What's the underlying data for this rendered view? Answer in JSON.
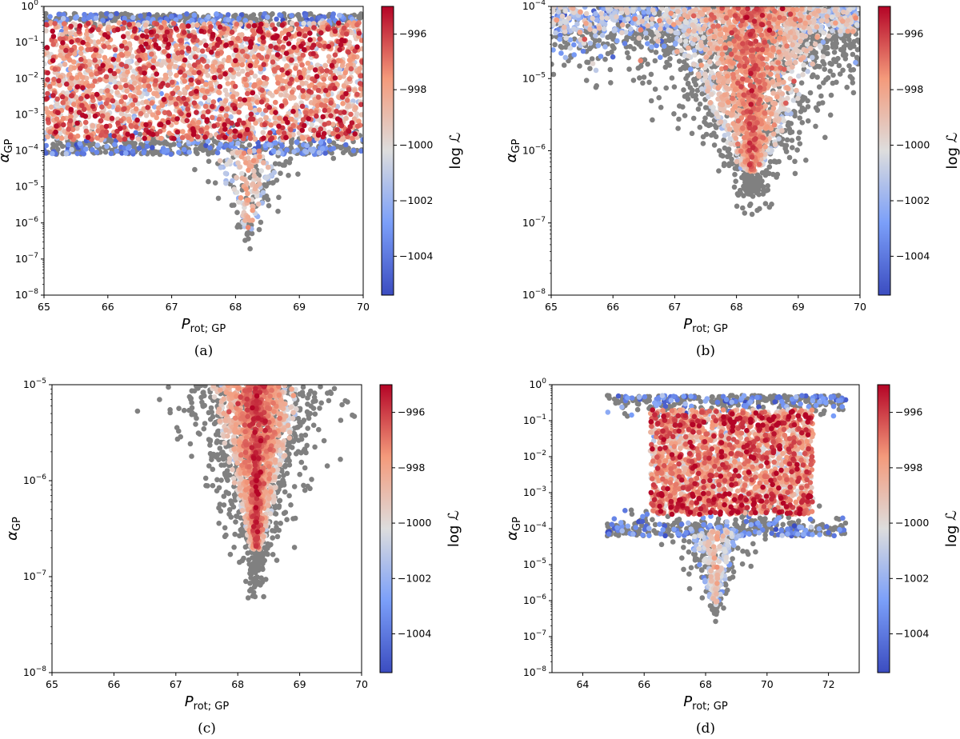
{
  "chart_data": [
    {
      "type": "scatter",
      "panel_label": "(a)",
      "xlabel_main": "P",
      "xlabel_sub": "rot; GP",
      "ylabel_main": "α",
      "ylabel_sub": "GP",
      "xlim": [
        65,
        70
      ],
      "ylim": [
        1e-08,
        1
      ],
      "yscale": "log",
      "x_ticks": [
        65,
        66,
        67,
        68,
        69,
        70
      ],
      "x_tick_labels": [
        "65",
        "66",
        "67",
        "68",
        "69",
        "70"
      ],
      "y_ticks": [
        1e-08,
        1e-07,
        1e-06,
        1e-05,
        0.0001,
        0.001,
        0.01,
        0.1,
        1
      ],
      "y_tick_labels": [
        {
          "base": "10",
          "exp": "−8"
        },
        {
          "base": "10",
          "exp": "−7"
        },
        {
          "base": "10",
          "exp": "−6"
        },
        {
          "base": "10",
          "exp": "−5"
        },
        {
          "base": "10",
          "exp": "−4"
        },
        {
          "base": "10",
          "exp": "−3"
        },
        {
          "base": "10",
          "exp": "−2"
        },
        {
          "base": "10",
          "exp": "−1"
        },
        {
          "base": "10",
          "exp": "0"
        }
      ],
      "colorbar": {
        "label": "log ℒ",
        "range": [
          -1005.4,
          -995.0
        ],
        "ticks": [
          -996,
          -998,
          -1000,
          -1002,
          -1004
        ],
        "tick_labels": [
          "−996",
          "−998",
          "−1000",
          "−1002",
          "−1004"
        ],
        "colormap": "coolwarm"
      },
      "grey_color": "#808080",
      "clusters": [
        {
          "kind": "band",
          "x_range": [
            65,
            70
          ],
          "log_y_range": [
            -3.7,
            -0.45
          ],
          "count": 2600,
          "log_L_center": -998.5,
          "log_L_spread": 1.8
        },
        {
          "kind": "band_edge",
          "x_range": [
            65,
            70
          ],
          "log_y_range": [
            -4.1,
            -0.2
          ],
          "count": 900,
          "log_L": "low"
        },
        {
          "kind": "vertex",
          "x_center": 68.2,
          "log_y_top": -4.0,
          "log_y_bottom": -6.5,
          "half_width": 0.6,
          "count": 150,
          "log_L_center": -1000.5,
          "log_L_spread": 1.5
        }
      ]
    },
    {
      "type": "scatter",
      "panel_label": "(b)",
      "xlabel_main": "P",
      "xlabel_sub": "rot; GP",
      "ylabel_main": "α",
      "ylabel_sub": "GP",
      "xlim": [
        65,
        70
      ],
      "ylim": [
        1e-08,
        0.0001
      ],
      "yscale": "log",
      "x_ticks": [
        65,
        66,
        67,
        68,
        69,
        70
      ],
      "x_tick_labels": [
        "65",
        "66",
        "67",
        "68",
        "69",
        "70"
      ],
      "y_ticks": [
        1e-08,
        1e-07,
        1e-06,
        1e-05,
        0.0001
      ],
      "y_tick_labels": [
        {
          "base": "10",
          "exp": "−8"
        },
        {
          "base": "10",
          "exp": "−7"
        },
        {
          "base": "10",
          "exp": "−6"
        },
        {
          "base": "10",
          "exp": "−5"
        },
        {
          "base": "10",
          "exp": "−4"
        }
      ],
      "colorbar": {
        "label": "log ℒ",
        "range": [
          -1005.4,
          -995.0
        ],
        "ticks": [
          -996,
          -998,
          -1000,
          -1002,
          -1004
        ],
        "tick_labels": [
          "−996",
          "−998",
          "−1000",
          "−1002",
          "−1004"
        ],
        "colormap": "coolwarm"
      },
      "grey_color": "#808080",
      "clusters": [
        {
          "kind": "top_band",
          "x_range": [
            65,
            70
          ],
          "log_y_range": [
            -4.6,
            -4.0
          ],
          "count": 900,
          "log_L_center": -1001.5,
          "log_L_spread": 1.8
        },
        {
          "kind": "vertex",
          "x_center": 68.25,
          "log_y_top": -4.0,
          "log_y_bottom": -6.6,
          "half_width": 1.6,
          "count": 1500,
          "log_L_center": -999.5,
          "log_L_spread": 1.8
        }
      ]
    },
    {
      "type": "scatter",
      "panel_label": "(c)",
      "xlabel_main": "P",
      "xlabel_sub": "rot; GP",
      "ylabel_main": "α",
      "ylabel_sub": "GP",
      "xlim": [
        65,
        70
      ],
      "ylim": [
        1e-08,
        1e-05
      ],
      "yscale": "log",
      "x_ticks": [
        65,
        66,
        67,
        68,
        69,
        70
      ],
      "x_tick_labels": [
        "65",
        "66",
        "67",
        "68",
        "69",
        "70"
      ],
      "y_ticks": [
        1e-08,
        1e-07,
        1e-06,
        1e-05
      ],
      "y_tick_labels": [
        {
          "base": "10",
          "exp": "−8"
        },
        {
          "base": "10",
          "exp": "−7"
        },
        {
          "base": "10",
          "exp": "−6"
        },
        {
          "base": "10",
          "exp": "−5"
        }
      ],
      "colorbar": {
        "label": "log ℒ",
        "range": [
          -1005.4,
          -995.0
        ],
        "ticks": [
          -996,
          -998,
          -1000,
          -1002,
          -1004
        ],
        "tick_labels": [
          "−996",
          "−998",
          "−1000",
          "−1002",
          "−1004"
        ],
        "colormap": "coolwarm"
      },
      "grey_color": "#808080",
      "clusters": [
        {
          "kind": "vertex",
          "x_center": 68.3,
          "log_y_top": -5.0,
          "log_y_bottom": -6.95,
          "half_width": 0.8,
          "count": 1500,
          "log_L_center": -999.0,
          "log_L_spread": 1.6
        }
      ]
    },
    {
      "type": "scatter",
      "panel_label": "(d)",
      "xlabel_main": "P",
      "xlabel_sub": "rot; GP",
      "ylabel_main": "α",
      "ylabel_sub": "GP",
      "xlim": [
        63,
        73
      ],
      "ylim": [
        1e-08,
        1
      ],
      "yscale": "log",
      "x_ticks": [
        64,
        66,
        68,
        70,
        72
      ],
      "x_tick_labels": [
        "64",
        "66",
        "68",
        "70",
        "72"
      ],
      "y_ticks": [
        1e-08,
        1e-07,
        1e-06,
        1e-05,
        0.0001,
        0.001,
        0.01,
        0.1,
        1
      ],
      "y_tick_labels": [
        {
          "base": "10",
          "exp": "−8"
        },
        {
          "base": "10",
          "exp": "−7"
        },
        {
          "base": "10",
          "exp": "−6"
        },
        {
          "base": "10",
          "exp": "−5"
        },
        {
          "base": "10",
          "exp": "−4"
        },
        {
          "base": "10",
          "exp": "−3"
        },
        {
          "base": "10",
          "exp": "−2"
        },
        {
          "base": "10",
          "exp": "−1"
        },
        {
          "base": "10",
          "exp": "0"
        }
      ],
      "colorbar": {
        "label": "log ℒ",
        "range": [
          -1005.4,
          -995.0
        ],
        "ticks": [
          -996,
          -998,
          -1000,
          -1002,
          -1004
        ],
        "tick_labels": [
          "−996",
          "−998",
          "−1000",
          "−1002",
          "−1004"
        ],
        "colormap": "coolwarm"
      },
      "grey_color": "#808080",
      "clusters": [
        {
          "kind": "band",
          "x_range": [
            66.2,
            71.5
          ],
          "log_y_range": [
            -3.6,
            -0.7
          ],
          "count": 2200,
          "log_L_center": -998.3,
          "log_L_spread": 1.7
        },
        {
          "kind": "band_edge",
          "x_range": [
            64.8,
            72.6
          ],
          "log_y_range": [
            -4.2,
            -0.3
          ],
          "count": 700,
          "log_L": "low"
        },
        {
          "kind": "vertex",
          "x_center": 68.3,
          "log_y_top": -4.0,
          "log_y_bottom": -6.4,
          "half_width": 1.0,
          "count": 250,
          "log_L_center": -1001.5,
          "log_L_spread": 1.3
        }
      ]
    }
  ]
}
